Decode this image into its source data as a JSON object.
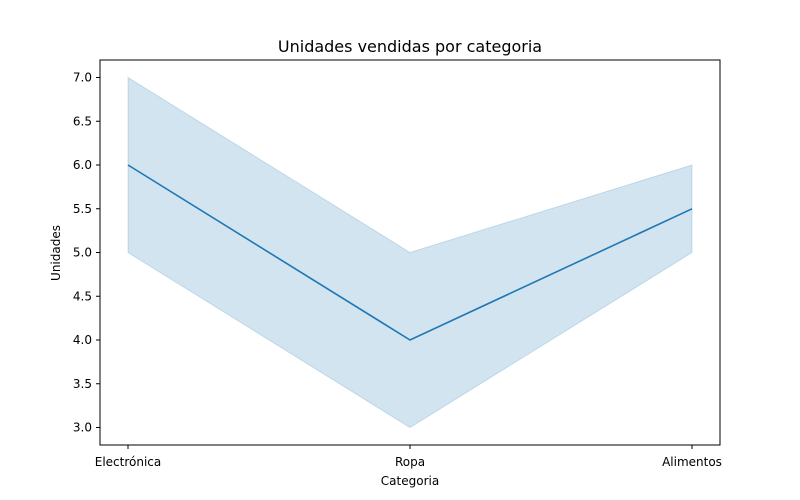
{
  "chart_data": {
    "type": "line",
    "title": "Unidades vendidas por categoria",
    "xlabel": "Categoria",
    "ylabel": "Unidades",
    "categories": [
      "Electrónica",
      "Ropa",
      "Alimentos"
    ],
    "series": [
      {
        "values": [
          6.0,
          4.0,
          5.5
        ],
        "band_lower": [
          5.0,
          3.0,
          5.0
        ],
        "band_upper": [
          7.0,
          5.0,
          6.0
        ]
      }
    ],
    "ylim": [
      2.8,
      7.2
    ],
    "yticks": [
      3.0,
      3.5,
      4.0,
      4.5,
      5.0,
      5.5,
      6.0,
      6.5,
      7.0
    ],
    "ytick_labels": [
      "3.0",
      "3.5",
      "4.0",
      "4.5",
      "5.0",
      "5.5",
      "6.0",
      "6.5",
      "7.0"
    ],
    "grid": false,
    "colors": {
      "line": "#1f77b4",
      "band": "#1f77b4"
    }
  }
}
